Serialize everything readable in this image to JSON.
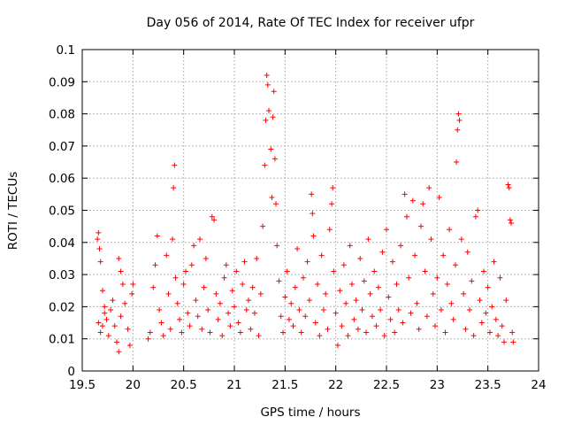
{
  "chart_data": {
    "type": "scatter",
    "title": "Day 056 of 2014, Rate Of TEC Index for receiver ufpr",
    "xlabel": "GPS time / hours",
    "ylabel": "ROTI / TECUs",
    "xlim": [
      19.5,
      24
    ],
    "ylim": [
      0,
      0.1
    ],
    "xticks": [
      "19.5",
      "20",
      "20.5",
      "21",
      "21.5",
      "22",
      "22.5",
      "23",
      "23.5",
      "24"
    ],
    "yticks": [
      "0",
      "0.01",
      "0.02",
      "0.03",
      "0.04",
      "0.05",
      "0.06",
      "0.07",
      "0.08",
      "0.09",
      "0.1"
    ],
    "grid": true,
    "marker": "+",
    "color": "#ff0000",
    "series": [
      {
        "name": "ROTI",
        "points": [
          [
            19.65,
            0.041
          ],
          [
            19.66,
            0.043
          ],
          [
            19.67,
            0.038
          ],
          [
            19.68,
            0.034
          ],
          [
            19.7,
            0.025
          ],
          [
            19.72,
            0.02
          ],
          [
            19.66,
            0.015
          ],
          [
            19.68,
            0.012
          ],
          [
            19.7,
            0.014
          ],
          [
            19.72,
            0.018
          ],
          [
            19.74,
            0.016
          ],
          [
            19.76,
            0.011
          ],
          [
            19.78,
            0.019
          ],
          [
            19.8,
            0.022
          ],
          [
            19.82,
            0.014
          ],
          [
            19.84,
            0.009
          ],
          [
            19.86,
            0.006
          ],
          [
            19.88,
            0.017
          ],
          [
            19.86,
            0.035
          ],
          [
            19.88,
            0.031
          ],
          [
            19.9,
            0.027
          ],
          [
            19.92,
            0.021
          ],
          [
            19.95,
            0.013
          ],
          [
            19.97,
            0.008
          ],
          [
            19.99,
            0.024
          ],
          [
            20.0,
            0.027
          ],
          [
            20.15,
            0.01
          ],
          [
            20.17,
            0.012
          ],
          [
            20.2,
            0.026
          ],
          [
            20.22,
            0.033
          ],
          [
            20.24,
            0.042
          ],
          [
            20.26,
            0.019
          ],
          [
            20.28,
            0.015
          ],
          [
            20.3,
            0.011
          ],
          [
            20.33,
            0.036
          ],
          [
            20.35,
            0.024
          ],
          [
            20.37,
            0.013
          ],
          [
            20.39,
            0.041
          ],
          [
            20.41,
            0.064
          ],
          [
            20.4,
            0.057
          ],
          [
            20.42,
            0.029
          ],
          [
            20.44,
            0.021
          ],
          [
            20.46,
            0.016
          ],
          [
            20.48,
            0.012
          ],
          [
            20.5,
            0.027
          ],
          [
            20.52,
            0.031
          ],
          [
            20.54,
            0.018
          ],
          [
            20.56,
            0.014
          ],
          [
            20.58,
            0.033
          ],
          [
            20.6,
            0.039
          ],
          [
            20.62,
            0.022
          ],
          [
            20.64,
            0.017
          ],
          [
            20.66,
            0.041
          ],
          [
            20.68,
            0.013
          ],
          [
            20.7,
            0.026
          ],
          [
            20.72,
            0.035
          ],
          [
            20.74,
            0.019
          ],
          [
            20.76,
            0.012
          ],
          [
            20.78,
            0.048
          ],
          [
            20.8,
            0.047
          ],
          [
            20.82,
            0.024
          ],
          [
            20.84,
            0.016
          ],
          [
            20.86,
            0.021
          ],
          [
            20.88,
            0.011
          ],
          [
            20.9,
            0.029
          ],
          [
            20.92,
            0.033
          ],
          [
            20.94,
            0.018
          ],
          [
            20.96,
            0.014
          ],
          [
            20.98,
            0.025
          ],
          [
            21.0,
            0.02
          ],
          [
            21.02,
            0.031
          ],
          [
            21.04,
            0.015
          ],
          [
            21.06,
            0.012
          ],
          [
            21.08,
            0.027
          ],
          [
            21.1,
            0.034
          ],
          [
            21.12,
            0.019
          ],
          [
            21.14,
            0.022
          ],
          [
            21.16,
            0.013
          ],
          [
            21.18,
            0.026
          ],
          [
            21.2,
            0.018
          ],
          [
            21.22,
            0.035
          ],
          [
            21.24,
            0.011
          ],
          [
            21.26,
            0.024
          ],
          [
            21.28,
            0.045
          ],
          [
            21.3,
            0.064
          ],
          [
            21.31,
            0.078
          ],
          [
            21.32,
            0.092
          ],
          [
            21.33,
            0.089
          ],
          [
            21.34,
            0.081
          ],
          [
            21.36,
            0.069
          ],
          [
            21.37,
            0.054
          ],
          [
            21.38,
            0.079
          ],
          [
            21.39,
            0.087
          ],
          [
            21.4,
            0.066
          ],
          [
            21.41,
            0.052
          ],
          [
            21.42,
            0.039
          ],
          [
            21.44,
            0.028
          ],
          [
            21.46,
            0.017
          ],
          [
            21.48,
            0.012
          ],
          [
            21.5,
            0.023
          ],
          [
            21.52,
            0.031
          ],
          [
            21.54,
            0.016
          ],
          [
            21.56,
            0.021
          ],
          [
            21.58,
            0.014
          ],
          [
            21.6,
            0.026
          ],
          [
            21.62,
            0.038
          ],
          [
            21.64,
            0.019
          ],
          [
            21.66,
            0.012
          ],
          [
            21.68,
            0.029
          ],
          [
            21.7,
            0.017
          ],
          [
            21.72,
            0.034
          ],
          [
            21.74,
            0.022
          ],
          [
            21.76,
            0.055
          ],
          [
            21.77,
            0.049
          ],
          [
            21.78,
            0.042
          ],
          [
            21.8,
            0.015
          ],
          [
            21.82,
            0.027
          ],
          [
            21.84,
            0.011
          ],
          [
            21.86,
            0.036
          ],
          [
            21.88,
            0.019
          ],
          [
            21.9,
            0.024
          ],
          [
            21.92,
            0.013
          ],
          [
            21.94,
            0.044
          ],
          [
            21.96,
            0.052
          ],
          [
            21.97,
            0.057
          ],
          [
            21.98,
            0.031
          ],
          [
            22.0,
            0.018
          ],
          [
            22.02,
            0.008
          ],
          [
            22.04,
            0.025
          ],
          [
            22.06,
            0.014
          ],
          [
            22.08,
            0.033
          ],
          [
            22.1,
            0.021
          ],
          [
            22.12,
            0.011
          ],
          [
            22.14,
            0.039
          ],
          [
            22.16,
            0.027
          ],
          [
            22.18,
            0.016
          ],
          [
            22.2,
            0.022
          ],
          [
            22.22,
            0.013
          ],
          [
            22.24,
            0.035
          ],
          [
            22.26,
            0.019
          ],
          [
            22.28,
            0.028
          ],
          [
            22.3,
            0.012
          ],
          [
            22.32,
            0.041
          ],
          [
            22.34,
            0.024
          ],
          [
            22.36,
            0.017
          ],
          [
            22.38,
            0.031
          ],
          [
            22.4,
            0.014
          ],
          [
            22.42,
            0.026
          ],
          [
            22.44,
            0.019
          ],
          [
            22.46,
            0.037
          ],
          [
            22.48,
            0.011
          ],
          [
            22.5,
            0.044
          ],
          [
            22.52,
            0.023
          ],
          [
            22.54,
            0.016
          ],
          [
            22.56,
            0.034
          ],
          [
            22.58,
            0.012
          ],
          [
            22.6,
            0.027
          ],
          [
            22.62,
            0.019
          ],
          [
            22.64,
            0.039
          ],
          [
            22.66,
            0.015
          ],
          [
            22.68,
            0.055
          ],
          [
            22.7,
            0.048
          ],
          [
            22.72,
            0.029
          ],
          [
            22.74,
            0.018
          ],
          [
            22.76,
            0.053
          ],
          [
            22.78,
            0.036
          ],
          [
            22.8,
            0.021
          ],
          [
            22.82,
            0.013
          ],
          [
            22.84,
            0.045
          ],
          [
            22.86,
            0.052
          ],
          [
            22.88,
            0.031
          ],
          [
            22.9,
            0.017
          ],
          [
            22.92,
            0.057
          ],
          [
            22.94,
            0.041
          ],
          [
            22.96,
            0.024
          ],
          [
            22.98,
            0.014
          ],
          [
            23.0,
            0.029
          ],
          [
            23.02,
            0.054
          ],
          [
            23.04,
            0.019
          ],
          [
            23.06,
            0.036
          ],
          [
            23.08,
            0.012
          ],
          [
            23.1,
            0.027
          ],
          [
            23.12,
            0.044
          ],
          [
            23.14,
            0.021
          ],
          [
            23.16,
            0.016
          ],
          [
            23.18,
            0.033
          ],
          [
            23.19,
            0.065
          ],
          [
            23.2,
            0.075
          ],
          [
            23.21,
            0.08
          ],
          [
            23.22,
            0.078
          ],
          [
            23.24,
            0.041
          ],
          [
            23.26,
            0.024
          ],
          [
            23.28,
            0.013
          ],
          [
            23.3,
            0.037
          ],
          [
            23.32,
            0.019
          ],
          [
            23.34,
            0.028
          ],
          [
            23.36,
            0.011
          ],
          [
            23.38,
            0.048
          ],
          [
            23.4,
            0.05
          ],
          [
            23.42,
            0.022
          ],
          [
            23.44,
            0.015
          ],
          [
            23.46,
            0.031
          ],
          [
            23.48,
            0.018
          ],
          [
            23.5,
            0.026
          ],
          [
            23.52,
            0.012
          ],
          [
            23.54,
            0.02
          ],
          [
            23.56,
            0.034
          ],
          [
            23.58,
            0.016
          ],
          [
            23.6,
            0.011
          ],
          [
            23.62,
            0.029
          ],
          [
            23.64,
            0.014
          ],
          [
            23.66,
            0.009
          ],
          [
            23.68,
            0.022
          ],
          [
            23.7,
            0.058
          ],
          [
            23.71,
            0.057
          ],
          [
            23.72,
            0.047
          ],
          [
            23.73,
            0.046
          ],
          [
            23.74,
            0.012
          ],
          [
            23.75,
            0.009
          ]
        ]
      }
    ]
  }
}
